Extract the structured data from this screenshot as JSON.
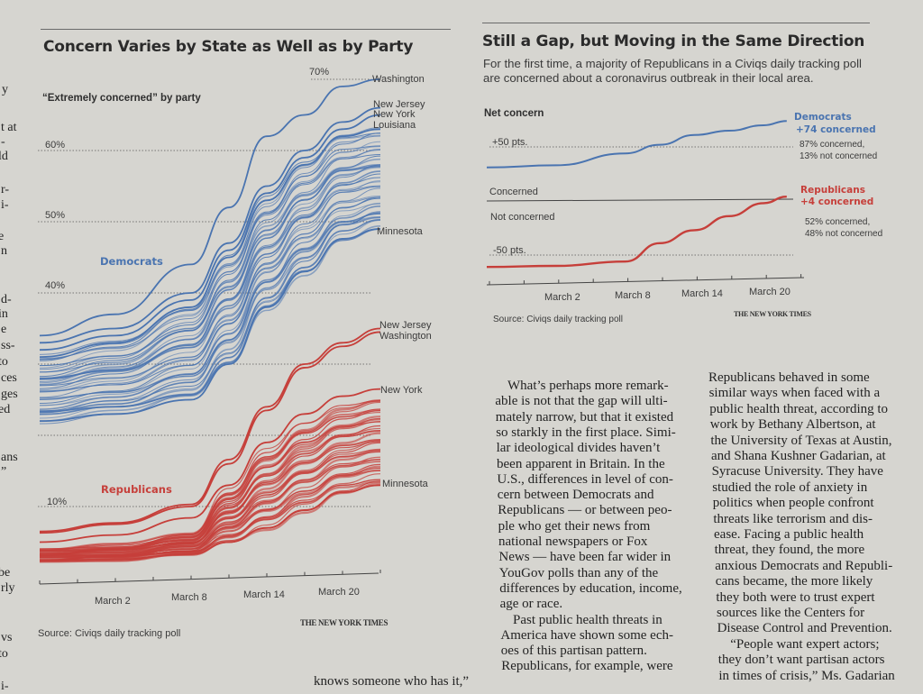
{
  "left_chart": {
    "title": "Concern Varies by State as Well as by Party",
    "subtitle": "“Extremely concerned” by party",
    "source": "Source: Civiqs daily tracking poll",
    "credit": "THE NEW YORK TIMES",
    "party_labels": {
      "dem": "Democrats",
      "rep": "Republicans"
    },
    "state_labels": {
      "dem": [
        "Washington",
        "New Jersey",
        "New York",
        "Louisiana",
        "Minnesota"
      ],
      "rep": [
        "New Jersey",
        "Washington",
        "New York",
        "Minnesota"
      ]
    }
  },
  "right_chart": {
    "title": "Still a Gap, but Moving in the Same Direction",
    "subtitle_lines": [
      "For the first time, a majority of Republicans in a Civiqs daily tracking poll",
      "are concerned about a coronavirus outbreak in their local area."
    ],
    "ylabel": "Net concern",
    "zone_labels": {
      "above": "Concerned",
      "below": "Not concerned"
    },
    "dem_label": [
      "Democrats",
      "+74 concerned"
    ],
    "dem_detail": [
      "87% concerned,",
      "13% not concerned"
    ],
    "rep_label": [
      "Republicans",
      "+4 concerned"
    ],
    "rep_detail": [
      "52% concerned,",
      "48% not concerned"
    ],
    "source": "Source: Civiqs daily tracking poll",
    "credit": "THE NEW YORK TIMES"
  },
  "colors": {
    "democrats": "#4a74b0",
    "republicans": "#c63f3a",
    "paper": "#d6d5d0"
  },
  "chart_data": [
    {
      "type": "line",
      "title": "Concern Varies by State as Well as by Party",
      "ylabel": "“Extremely concerned” by party",
      "x_ticks": [
        "March 2",
        "March 8",
        "March 14",
        "March 20"
      ],
      "y_ticks": [
        "70%",
        "60%",
        "50%",
        "40%",
        "10%"
      ],
      "y_gridlines": [
        70,
        60,
        50,
        40,
        30,
        20,
        10
      ],
      "ylim": [
        0,
        72
      ],
      "xlim": [
        "2020-02-25",
        "2020-03-23"
      ],
      "grid": "dotted horizontal",
      "x": [
        "2020-02-25",
        "2020-03-02",
        "2020-03-08",
        "2020-03-11",
        "2020-03-14",
        "2020-03-17",
        "2020-03-20",
        "2020-03-23"
      ],
      "series": [
        {
          "name": "Washington",
          "party": "Democrats",
          "values": [
            34,
            37,
            44,
            52,
            62,
            65,
            69,
            70
          ]
        },
        {
          "name": "New Jersey",
          "party": "Democrats",
          "values": [
            33,
            35,
            40,
            47,
            55,
            60,
            64,
            66
          ]
        },
        {
          "name": "New York",
          "party": "Democrats",
          "values": [
            32,
            34,
            39,
            46,
            54,
            59,
            63,
            65
          ]
        },
        {
          "name": "Louisiana",
          "party": "Democrats",
          "values": [
            31,
            33,
            38,
            45,
            53,
            58,
            62,
            63
          ]
        },
        {
          "name": "Minnesota",
          "party": "Democrats",
          "values": [
            22,
            23,
            25,
            30,
            38,
            43,
            47.6,
            49
          ]
        },
        {
          "name": "New Jersey",
          "party": "Republicans",
          "values": [
            6.5,
            7.7,
            10.3,
            16.6,
            24,
            30,
            33,
            35
          ]
        },
        {
          "name": "Washington",
          "party": "Republicans",
          "values": [
            6.3,
            7.5,
            10,
            16,
            23.5,
            29.5,
            32.5,
            34.5
          ]
        },
        {
          "name": "New York",
          "party": "Republicans",
          "values": [
            5,
            6,
            8.4,
            13,
            19,
            23,
            25.5,
            26.5
          ]
        },
        {
          "name": "Minnesota",
          "party": "Republicans",
          "values": [
            2.4,
            2.6,
            3.3,
            5,
            7,
            9.5,
            12,
            13
          ]
        }
      ]
    },
    {
      "type": "line",
      "title": "Still a Gap, but Moving in the Same Direction",
      "ylabel": "Net concern",
      "x_ticks": [
        "March 2",
        "March 8",
        "March 14",
        "March 20"
      ],
      "y_ticks": [
        "+50 pts.",
        "-50 pts."
      ],
      "ylim": [
        -70,
        80
      ],
      "xlim": [
        "2020-02-25",
        "2020-03-23"
      ],
      "x": [
        "2020-02-25",
        "2020-03-02",
        "2020-03-08",
        "2020-03-11",
        "2020-03-14",
        "2020-03-17",
        "2020-03-20",
        "2020-03-22"
      ],
      "series": [
        {
          "name": "Democrats",
          "values": [
            31,
            33,
            44,
            52,
            61,
            65,
            70,
            74
          ]
        },
        {
          "name": "Republicans",
          "values": [
            -61,
            -60,
            -56,
            -39,
            -27,
            -14,
            -2,
            4
          ]
        }
      ]
    }
  ],
  "article": {
    "col1": [
      "What’s perhaps more remark-",
      "able is not that the gap will ulti-",
      "mately narrow, but that it existed",
      "so starkly in the first place. Simi-",
      "lar ideological divides haven’t",
      "been apparent in Britain. In the",
      "U.S., differences in level of con-",
      "cern between Democrats and",
      "Republicans — or between peo-",
      "ple who get their news from",
      "national newspapers or Fox",
      "News — have been far wider in",
      "YouGov polls than any of the",
      "differences by education, income,",
      "age or race.",
      "Past public health threats in",
      "America have shown some ech-",
      "oes of this partisan pattern.",
      "Republicans, for example, were"
    ],
    "col2": [
      "Republicans behaved in some",
      "similar ways when faced with a",
      "public health threat, according to",
      "work by Bethany Albertson, at",
      "the University of Texas at Austin,",
      "and Shana Kushner Gadarian, at",
      "Syracuse University. They have",
      "studied the role of anxiety in",
      "politics when people confront",
      "threats like terrorism and dis-",
      "ease. Facing a public health",
      "threat, they found, the more",
      "anxious Democrats and Republi-",
      "cans became, the more likely",
      "they both were to trust expert",
      "sources like the Centers for",
      "Disease Control and Prevention.",
      "“People want expert actors;",
      "they don’t want partisan actors",
      "in times of crisis,” Ms. Gadarian"
    ],
    "bottom_fragment": "knows someone who has it,”",
    "left_edge_fragments": [
      "y",
      "t at",
      "-",
      "ld",
      "r-",
      "i-",
      "e",
      "n",
      "d-",
      "in",
      "e",
      "ss-",
      "to",
      "ces",
      "ges",
      "ed",
      "ans",
      "”",
      "be",
      "rly",
      "vs",
      "to",
      "i-"
    ]
  }
}
